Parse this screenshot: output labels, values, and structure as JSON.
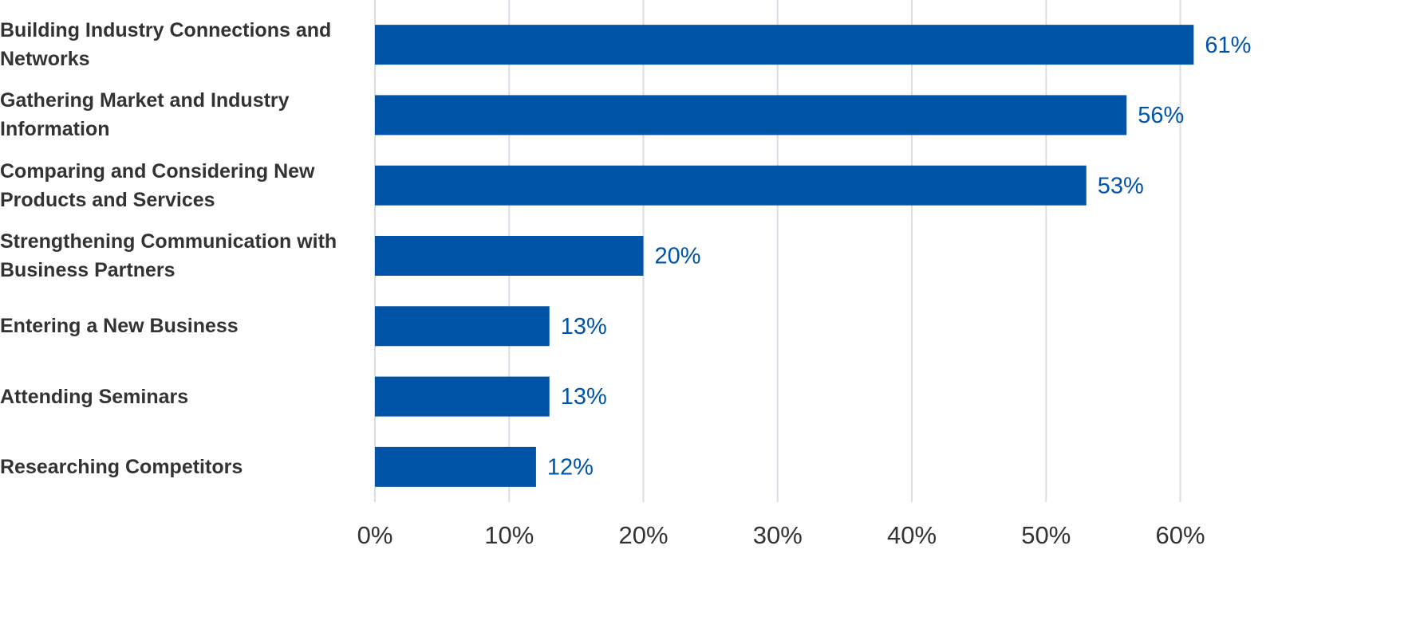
{
  "chart_data": {
    "type": "bar",
    "orientation": "horizontal",
    "categories": [
      "Building Industry Connections and Networks",
      "Gathering Market and Industry Information",
      "Comparing and Considering New Products and Services",
      "Strengthening Communication with Business Partners",
      "Entering a New Business",
      "Attending Seminars",
      "Researching Competitors"
    ],
    "values": [
      61,
      56,
      53,
      20,
      13,
      13,
      12
    ],
    "value_labels": [
      "61%",
      "56%",
      "53%",
      "20%",
      "13%",
      "13%",
      "12%"
    ],
    "color": "#0054a7",
    "xlim": [
      0,
      63
    ],
    "xticks": [
      {
        "value": 0,
        "label": "0%"
      },
      {
        "value": 10,
        "label": "10%"
      },
      {
        "value": 20,
        "label": "20%"
      },
      {
        "value": 30,
        "label": "30%"
      },
      {
        "value": 40,
        "label": "40%"
      },
      {
        "value": 50,
        "label": "50%"
      },
      {
        "value": 60,
        "label": "60%"
      }
    ],
    "grid": true
  }
}
